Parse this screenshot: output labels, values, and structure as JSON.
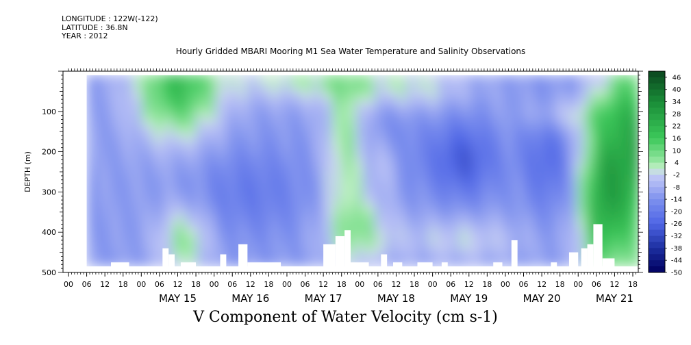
{
  "header": {
    "longitude": "LONGITUDE : 122W(-122)",
    "latitude": "LATITUDE : 36.8N",
    "year": "YEAR : 2012"
  },
  "chart_data": {
    "type": "heatmap",
    "title": "Hourly Gridded MBARI Mooring M1 Sea Water Temperature and Salinity Observations",
    "xlabel": "V Component of Water Velocity (cm s-1)",
    "ylabel": "DEPTH (m)",
    "ylim": [
      500,
      0
    ],
    "y_ticks": [
      100,
      200,
      300,
      400,
      500
    ],
    "x_hour_ticks": [
      "00",
      "06",
      "12",
      "18",
      "00",
      "06",
      "12",
      "18",
      "00",
      "06",
      "12",
      "18",
      "00",
      "06",
      "12",
      "18",
      "00",
      "06",
      "12",
      "18",
      "00",
      "06",
      "12",
      "18",
      "00",
      "06",
      "12",
      "18",
      "00",
      "06",
      "12",
      "18"
    ],
    "x_day_labels": [
      "MAY 15",
      "MAY 16",
      "MAY 17",
      "MAY 18",
      "MAY 19",
      "MAY 20",
      "MAY 21"
    ],
    "colorbar": {
      "labels": [
        "46",
        "40",
        "34",
        "28",
        "22",
        "16",
        "10",
        "4",
        "-2",
        "-8",
        "-14",
        "-20",
        "-26",
        "-32",
        "-38",
        "-44",
        "-50"
      ],
      "range": [
        -50,
        49
      ],
      "step": 3,
      "colors": {
        "strong_positive": "#0b4a1e",
        "positive": "#2fbf4f",
        "weak_positive": "#a8eeb2",
        "weak_negative": "#b8bff2",
        "negative": "#6f84e8",
        "strong_negative": "#1d2fa0",
        "extreme_negative": "#000060"
      }
    },
    "notes": "Velocity field over depth and time (May 14 00Z - May 21 ~23Z 2012); predominantly weak negative values (-10 to -25 cm/s) with patches of positive values (up to ~+20) near the surface on May 15, around May 17 and late May 20 - May 21; strongest negatives (~-30) near 200-250 m on May 18-20."
  }
}
